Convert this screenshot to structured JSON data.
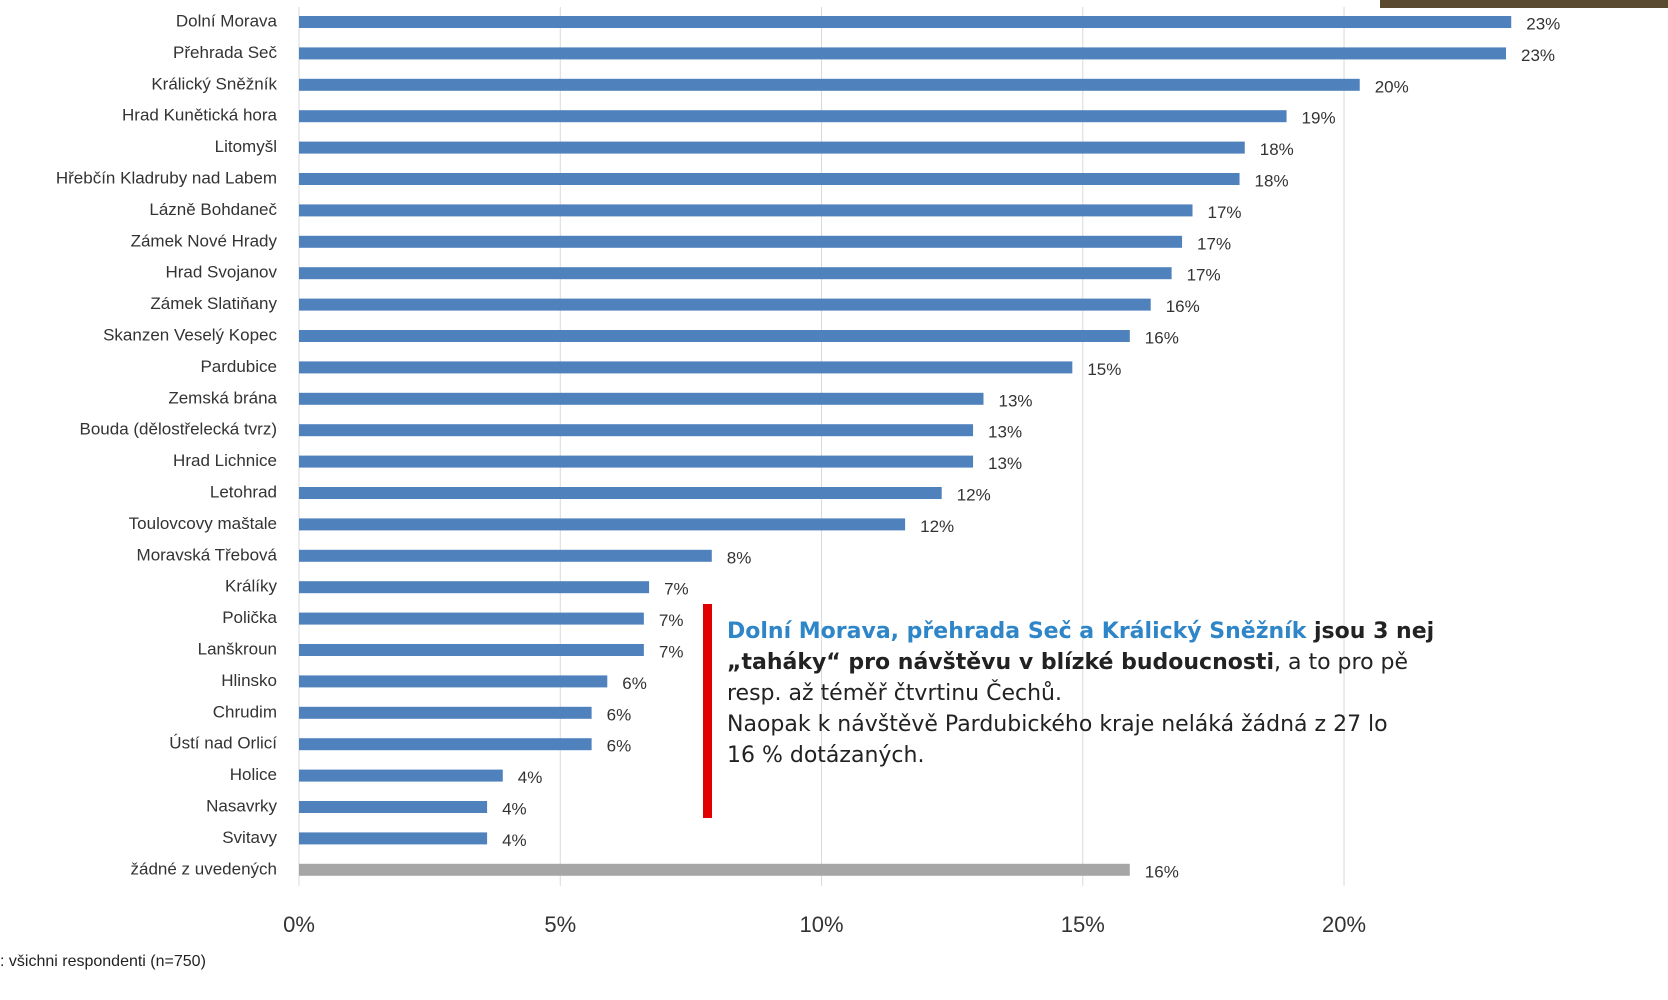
{
  "chart_data": {
    "type": "bar",
    "orientation": "horizontal",
    "categories": [
      "Dolní Morava",
      "Přehrada Seč",
      "Králický Sněžník",
      "Hrad Kunětická hora",
      "Litomyšl",
      "Hřebčín Kladruby nad Labem",
      "Lázně Bohdaneč",
      "Zámek Nové Hrady",
      "Hrad Svojanov",
      "Zámek Slatiňany",
      "Skanzen Veselý Kopec",
      "Pardubice",
      "Zemská brána",
      "Bouda (dělostřelecká tvrz)",
      "Hrad Lichnice",
      "Letohrad",
      "Toulovcovy maštale",
      "Moravská Třebová",
      "Králíky",
      "Polička",
      "Lanškroun",
      "Hlinsko",
      "Chrudim",
      "Ústí nad Orlicí",
      "Holice",
      "Nasavrky",
      "Svitavy",
      "žádné z uvedených"
    ],
    "values": [
      23.2,
      23.1,
      20.3,
      18.9,
      18.1,
      18.0,
      17.1,
      16.9,
      16.7,
      16.3,
      15.9,
      14.8,
      13.1,
      12.9,
      12.9,
      12.3,
      11.6,
      7.9,
      6.7,
      6.6,
      6.6,
      5.9,
      5.6,
      5.6,
      3.9,
      3.6,
      3.6,
      15.9
    ],
    "value_labels": [
      "23%",
      "23%",
      "20%",
      "19%",
      "18%",
      "18%",
      "17%",
      "17%",
      "17%",
      "16%",
      "16%",
      "15%",
      "13%",
      "13%",
      "13%",
      "12%",
      "12%",
      "8%",
      "7%",
      "7%",
      "7%",
      "6%",
      "6%",
      "6%",
      "4%",
      "4%",
      "4%",
      "16%"
    ],
    "colors": [
      "#4f81bd",
      "#4f81bd",
      "#4f81bd",
      "#4f81bd",
      "#4f81bd",
      "#4f81bd",
      "#4f81bd",
      "#4f81bd",
      "#4f81bd",
      "#4f81bd",
      "#4f81bd",
      "#4f81bd",
      "#4f81bd",
      "#4f81bd",
      "#4f81bd",
      "#4f81bd",
      "#4f81bd",
      "#4f81bd",
      "#4f81bd",
      "#4f81bd",
      "#4f81bd",
      "#4f81bd",
      "#4f81bd",
      "#4f81bd",
      "#4f81bd",
      "#4f81bd",
      "#4f81bd",
      "#a6a6a6"
    ],
    "xlim": [
      0,
      26.2
    ],
    "xticks": [
      {
        "value": 0,
        "label": "0%"
      },
      {
        "value": 5,
        "label": "5%"
      },
      {
        "value": 10,
        "label": "10%"
      },
      {
        "value": 15,
        "label": "15%"
      },
      {
        "value": 20,
        "label": "20%"
      }
    ],
    "grid": true,
    "note": ": všichni respondenti (n=750)",
    "annotation": {
      "line1": [
        "Dolní Morava, přehrada Seč a Králický Sněžník",
        " jsou 3 nej"
      ],
      "line2": [
        "„taháky“ pro návštěvu v blízké budoucnosti",
        ", a to pro pě"
      ],
      "line3": "resp. až téměř čtvrtinu Čechů.",
      "line4": "Naopak k návštěvě Pardubického kraje neláká žádná z 27 lo",
      "line5": "16 % dotázaných."
    }
  }
}
